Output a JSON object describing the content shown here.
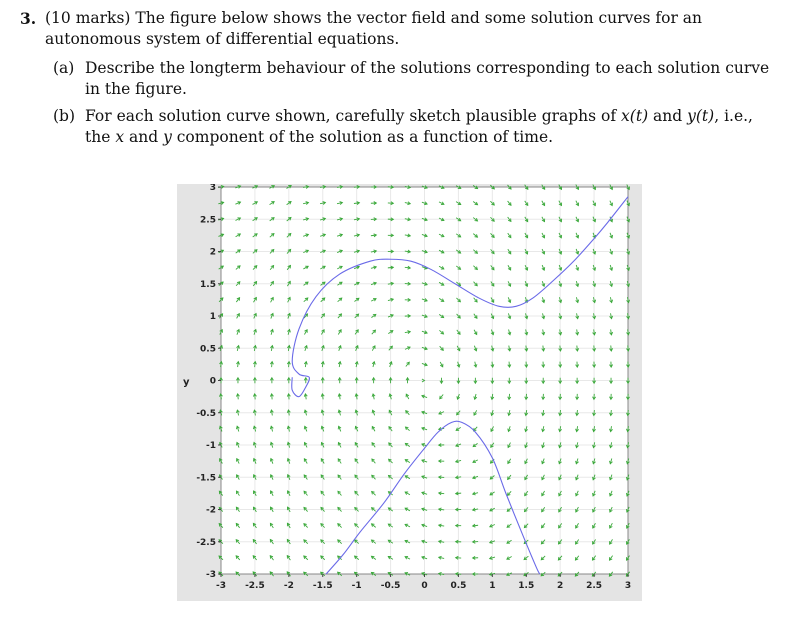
{
  "question": {
    "number": "3.",
    "intro_marks": "(10 marks)",
    "intro_text": " The figure below shows the vector field and some solution curves for an autonomous system of differential equations.",
    "parts": [
      {
        "label": "(a)",
        "text": "Describe the longterm behaviour of the solutions corresponding to each solution curve in the figure."
      },
      {
        "label": "(b)",
        "text_1": "For each solution curve shown, carefully sketch plausible graphs of ",
        "x_of_t": "x(t)",
        "text_2": " and ",
        "y_of_t": "y(t)",
        "text_3": ", i.e., the ",
        "x": "x",
        "text_4": " and ",
        "y": "y",
        "text_5": " component of the solution as a function of time."
      }
    ]
  },
  "chart_data": {
    "type": "scatter",
    "title": "",
    "xlabel": "",
    "ylabel": "y",
    "xlim": [
      -3,
      3
    ],
    "ylim": [
      -3,
      3
    ],
    "x_ticks": [
      "-3",
      "-2.5",
      "-2",
      "-1.5",
      "-1",
      "-0.5",
      "0",
      "0.5",
      "1",
      "1.5",
      "2",
      "2.5",
      "3"
    ],
    "y_ticks": [
      "3",
      "2.5",
      "2",
      "1.5",
      "1",
      "0.5",
      "0",
      "-0.5",
      "-1",
      "-1.5",
      "-2",
      "-2.5",
      "-3"
    ],
    "grid": true,
    "vector_field_color": "#3aa83a",
    "curve_color": "#6a6ae8",
    "series": [
      {
        "points": [
          [
            -1.95,
            0.05
          ],
          [
            -1.95,
            -0.15
          ],
          [
            -1.85,
            -0.25
          ],
          [
            -1.75,
            -0.1
          ],
          [
            -1.7,
            0.05
          ],
          [
            -1.85,
            0.1
          ],
          [
            -1.95,
            0.3
          ],
          [
            -1.85,
            0.8
          ],
          [
            -1.6,
            1.3
          ],
          [
            -1.25,
            1.65
          ],
          [
            -0.8,
            1.85
          ],
          [
            -0.5,
            1.88
          ],
          [
            -0.2,
            1.85
          ],
          [
            0.1,
            1.72
          ],
          [
            0.45,
            1.5
          ],
          [
            0.8,
            1.28
          ],
          [
            1.1,
            1.15
          ],
          [
            1.35,
            1.15
          ],
          [
            1.6,
            1.28
          ],
          [
            1.9,
            1.55
          ],
          [
            2.2,
            1.85
          ],
          [
            2.5,
            2.2
          ],
          [
            2.7,
            2.45
          ],
          [
            3.0,
            2.85
          ]
        ]
      },
      {
        "points": [
          [
            -1.45,
            -3.0
          ],
          [
            -1.2,
            -2.7
          ],
          [
            -0.95,
            -2.35
          ],
          [
            -0.6,
            -1.9
          ],
          [
            -0.3,
            -1.45
          ],
          [
            0.0,
            -1.05
          ],
          [
            0.2,
            -0.8
          ],
          [
            0.4,
            -0.65
          ],
          [
            0.55,
            -0.65
          ],
          [
            0.75,
            -0.8
          ],
          [
            1.0,
            -1.2
          ],
          [
            1.2,
            -1.75
          ],
          [
            1.45,
            -2.4
          ],
          [
            1.65,
            -2.9
          ],
          [
            1.7,
            -3.0
          ]
        ]
      }
    ]
  }
}
